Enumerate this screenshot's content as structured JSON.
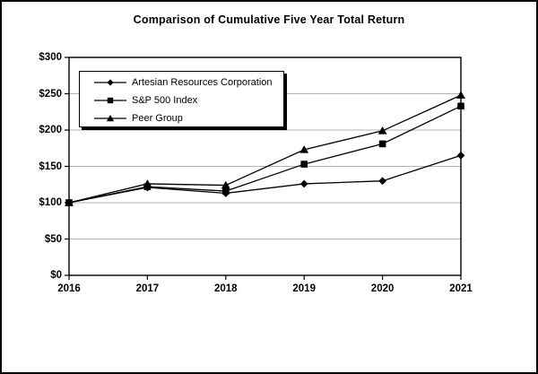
{
  "frame": {
    "background": "#ffffff",
    "border_color": "#000000"
  },
  "chart_data": {
    "type": "line",
    "title": "Comparison of Cumulative Five Year Total Return",
    "x": [
      2016,
      2017,
      2018,
      2019,
      2020,
      2021
    ],
    "x_tick_labels": [
      "2016",
      "2017",
      "2018",
      "2019",
      "2020",
      "2021"
    ],
    "series": [
      {
        "name": "Artesian Resources Corporation",
        "marker": "diamond",
        "color": "#000000",
        "values": [
          100,
          121,
          113,
          126,
          130,
          165
        ]
      },
      {
        "name": "S&P 500 Index",
        "marker": "square",
        "color": "#000000",
        "values": [
          100,
          122,
          116,
          153,
          181,
          233
        ]
      },
      {
        "name": "Peer Group",
        "marker": "triangle",
        "color": "#000000",
        "values": [
          100,
          126,
          124,
          173,
          199,
          248
        ]
      }
    ],
    "ylim": [
      0,
      300
    ],
    "y_ticks": [
      0,
      50,
      100,
      150,
      200,
      250,
      300
    ],
    "y_tick_labels": [
      "$0",
      "$50",
      "$100",
      "$150",
      "$200",
      "$250",
      "$300"
    ],
    "grid": "horizontal",
    "gridline_color": "#b3b3b3",
    "axis_color": "#000000",
    "legend_position": "top-left-inside"
  }
}
